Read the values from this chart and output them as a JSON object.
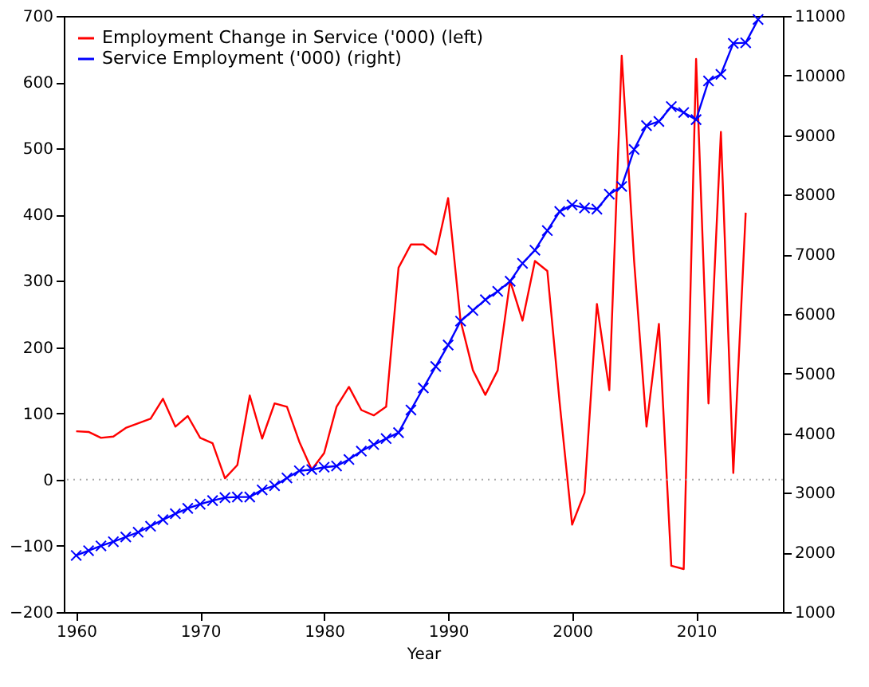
{
  "chart_data": {
    "type": "line",
    "xlabel": "Year",
    "x": [
      1960,
      1961,
      1962,
      1963,
      1964,
      1965,
      1966,
      1967,
      1968,
      1969,
      1970,
      1971,
      1972,
      1973,
      1974,
      1975,
      1976,
      1977,
      1978,
      1979,
      1980,
      1981,
      1982,
      1983,
      1984,
      1985,
      1986,
      1987,
      1988,
      1989,
      1990,
      1991,
      1992,
      1993,
      1994,
      1995,
      1996,
      1997,
      1998,
      1999,
      2000,
      2001,
      2002,
      2003,
      2004,
      2005,
      2006,
      2007,
      2008,
      2009,
      2010,
      2011,
      2012,
      2013,
      2014,
      2015
    ],
    "series": [
      {
        "name": "Employment Change in Service ('000)  (left)",
        "color": "#ff0000",
        "values": [
          73,
          72,
          63,
          65,
          78,
          85,
          92,
          122,
          80,
          96,
          63,
          55,
          2,
          22,
          127,
          62,
          115,
          110,
          57,
          15,
          40,
          110,
          140,
          105,
          97,
          110,
          320,
          355,
          355,
          340,
          425,
          240,
          165,
          128,
          165,
          300,
          240,
          330,
          315,
          115,
          -68,
          -20,
          265,
          135,
          640,
          330,
          80,
          235,
          -130,
          -135,
          635,
          115,
          525,
          10,
          403,
          null
        ]
      },
      {
        "name": "Service Employment ('000)  (right)",
        "color": "#0000ff",
        "axis": "y2",
        "marker": "cross",
        "values": [
          1950,
          2030,
          2110,
          2180,
          2260,
          2340,
          2440,
          2550,
          2650,
          2740,
          2810,
          2870,
          2920,
          2930,
          2930,
          3050,
          3120,
          3250,
          3370,
          3390,
          3430,
          3450,
          3560,
          3700,
          3810,
          3910,
          4010,
          4390,
          4760,
          5120,
          5480,
          5880,
          6060,
          6240,
          6380,
          6550,
          6850,
          7070,
          7400,
          7720,
          7830,
          7780,
          7760,
          8010,
          8140,
          8760,
          9160,
          9230,
          9480,
          9380,
          9260,
          9910,
          10020,
          10540,
          10550,
          10940
        ]
      }
    ],
    "xlim": [
      1959,
      2017
    ],
    "xticks": [
      1960,
      1970,
      1980,
      1990,
      2000,
      2010
    ],
    "ylim": [
      -200,
      700
    ],
    "yticks": [
      -200,
      -100,
      0,
      100,
      200,
      300,
      400,
      500,
      600,
      700
    ],
    "y2lim": [
      1000,
      11000
    ],
    "y2ticks": [
      1000,
      2000,
      3000,
      4000,
      5000,
      6000,
      7000,
      8000,
      9000,
      10000,
      11000
    ],
    "ref_lines": [
      {
        "axis": "y",
        "value": 0,
        "color": "#aaaaaa",
        "line_style": "dotted"
      }
    ],
    "legend": "top left"
  }
}
